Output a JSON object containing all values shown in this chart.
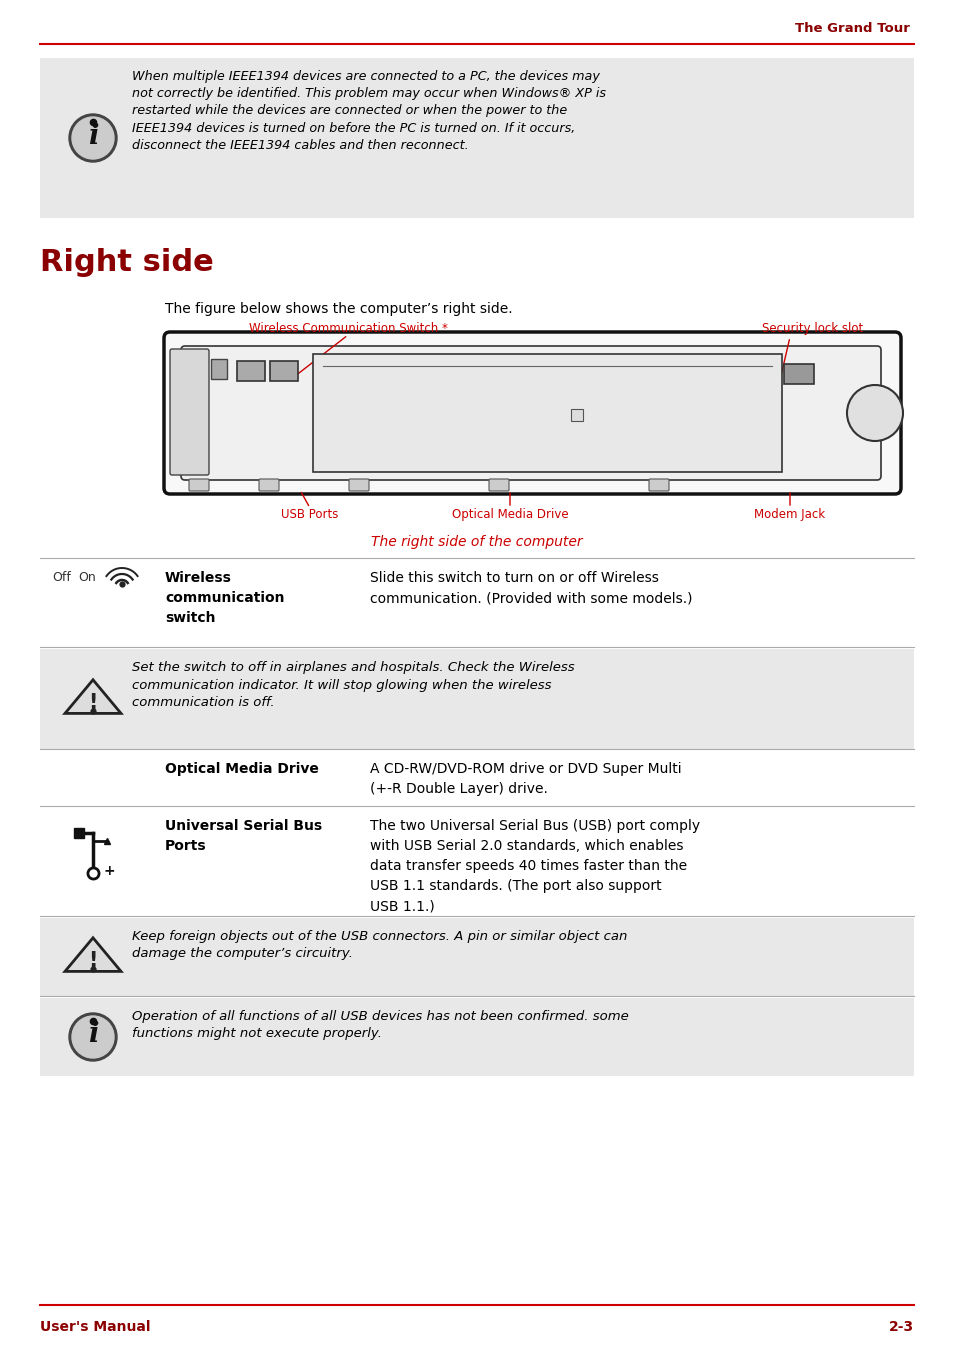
{
  "page_title": "The Grand Tour",
  "title_color": "#8B0000",
  "section_title": "Right side",
  "section_title_color": "#8B0000",
  "bg_color": "#FFFFFF",
  "gray_bg": "#E8E8E8",
  "red_color": "#CC0000",
  "dark_red": "#8B0000",
  "line_color": "#CC0000",
  "footer_left": "User's Manual",
  "footer_right": "2-3",
  "info_box_text": "When multiple IEEE1394 devices are connected to a PC, the devices may\nnot correctly be identified. This problem may occur when Windows® XP is\nrestarted while the devices are connected or when the power to the\nIEEE1394 devices is turned on before the PC is turned on. If it occurs,\ndisconnect the IEEE1394 cables and then reconnect.",
  "figure_caption": "The right side of the computer",
  "intro_text": "The figure below shows the computer’s right side.",
  "wireless_label": "Wireless Communication Switch *",
  "security_label": "Security lock slot",
  "usb_label": "USB Ports",
  "optical_label": "Optical Media Drive",
  "modem_label": "Modem Jack",
  "row1_bold": "Wireless\ncommunication\nswitch",
  "row1_desc": "Slide this switch to turn on or off Wireless\ncommunication. (Provided with some models.)",
  "row2_italic": "Set the switch to off in airplanes and hospitals. Check the Wireless\ncommunication indicator. It will stop glowing when the wireless\ncommunication is off.",
  "row3_bold": "Optical Media Drive",
  "row3_desc": "A CD-RW/DVD-ROM drive or DVD Super Multi\n(+-R Double Layer) drive.",
  "row4_bold": "Universal Serial Bus\nPorts",
  "row4_desc": "The two Universal Serial Bus (USB) port comply\nwith USB Serial 2.0 standards, which enables\ndata transfer speeds 40 times faster than the\nUSB 1.1 standards. (The port also support\nUSB 1.1.)",
  "row5_italic": "Keep foreign objects out of the USB connectors. A pin or similar object can\ndamage the computer’s circuitry.",
  "row6_italic": "Operation of all functions of all USB devices has not been confirmed. some\nfunctions might not execute properly."
}
